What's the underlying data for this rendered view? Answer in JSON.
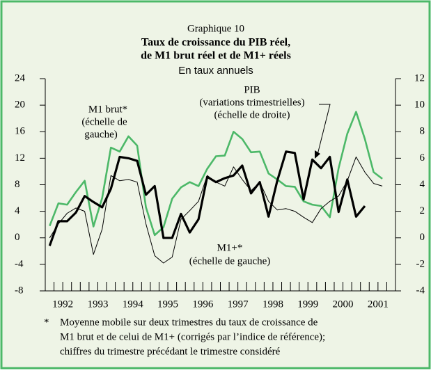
{
  "chart_data": {
    "type": "line",
    "title": "Graphique 10",
    "subtitle": [
      "Taux de croissance du PIB réel,",
      "de M1 brut réel et de M1+ réels"
    ],
    "unit_label": "En taux annuels",
    "annotations": {
      "m1brut": [
        "M1 brut*",
        "(échelle de",
        "gauche)"
      ],
      "pib": [
        "PIB",
        "(variations trimestrielles)",
        "(échelle de droite)"
      ],
      "m1plus": [
        "M1+*",
        "(échelle de gauche)"
      ]
    },
    "footnote": {
      "marker": "*",
      "lines": [
        "Moyenne mobile sur deux trimestres du taux de croissance de",
        "M1 brut et de celui de M1+ (corrigés par l’indice de référence);",
        "chiffres du trimestre précédant le trimestre considéré"
      ]
    },
    "x": [
      1992.125,
      1992.375,
      1992.625,
      1992.875,
      1993.125,
      1993.375,
      1993.625,
      1993.875,
      1994.125,
      1994.375,
      1994.625,
      1994.875,
      1995.125,
      1995.375,
      1995.625,
      1995.875,
      1996.125,
      1996.375,
      1996.625,
      1996.875,
      1997.125,
      1997.375,
      1997.625,
      1997.875,
      1998.125,
      1998.375,
      1998.625,
      1998.875,
      1999.125,
      1999.375,
      1999.625,
      1999.875,
      2000.125,
      2000.375,
      2000.625,
      2000.875,
      2001.125,
      2001.375,
      2001.625
    ],
    "xlim": [
      1992,
      2002
    ],
    "xticks": [
      {
        "value": 1992.5,
        "label": "1992"
      },
      {
        "value": 1993.5,
        "label": "1993"
      },
      {
        "value": 1994.5,
        "label": "1994"
      },
      {
        "value": 1995.5,
        "label": "1995"
      },
      {
        "value": 1996.5,
        "label": "1996"
      },
      {
        "value": 1997.5,
        "label": "1997"
      },
      {
        "value": 1998.5,
        "label": "1998"
      },
      {
        "value": 1999.5,
        "label": "1999"
      },
      {
        "value": 2000.5,
        "label": "2000"
      },
      {
        "value": 2001.5,
        "label": "2001"
      }
    ],
    "ylim": [
      -8,
      24
    ],
    "yticks": [
      -8,
      -4,
      0,
      4,
      8,
      12,
      16,
      20,
      24
    ],
    "y2lim": [
      -4,
      12
    ],
    "y2ticks": [
      -4,
      -2,
      0,
      2,
      4,
      6,
      8,
      10,
      12
    ],
    "series": [
      {
        "name": "M1 brut",
        "color": "#4cb868",
        "values": [
          1.8,
          5.2,
          5.0,
          6.9,
          8.6,
          1.7,
          6.0,
          13.6,
          13.0,
          15.3,
          13.9,
          4.6,
          0.4,
          1.6,
          5.9,
          7.6,
          8.4,
          7.8,
          10.4,
          12.3,
          12.4,
          16.0,
          14.9,
          12.9,
          13.0,
          9.7,
          8.8,
          7.8,
          7.7,
          5.5,
          5.0,
          4.8,
          3.1,
          10.5,
          15.7,
          19.0,
          14.9,
          9.9,
          8.9
        ]
      },
      {
        "name": "M1+",
        "color": "#000000",
        "values": [
          0,
          2.1,
          3.7,
          4.5,
          4.0,
          -2.5,
          1.3,
          9.4,
          8.6,
          8.8,
          8.4,
          2.1,
          -2.7,
          -3.8,
          -2.9,
          2.8,
          4.1,
          5.5,
          9.4,
          8.4,
          7.8,
          10.7,
          8.8,
          7.1,
          8.4,
          5.5,
          4.2,
          4.4,
          4.0,
          3.1,
          2.3,
          4.4,
          5.5,
          6.3,
          8.6,
          12.2,
          9.9,
          8.2,
          7.8
        ]
      },
      {
        "name": "PIB",
        "color": "#000000",
        "axis": "y2",
        "values": [
          -0.6,
          1.25,
          1.25,
          1.9,
          3.15,
          2.7,
          2.3,
          3.7,
          6.1,
          6.0,
          5.8,
          3.25,
          3.9,
          0,
          0,
          1.8,
          0.4,
          1.4,
          4.6,
          4.2,
          4.5,
          4.7,
          5.45,
          3.35,
          4.2,
          1.6,
          4.3,
          6.5,
          6.4,
          2.9,
          5.9,
          5.25,
          6.1,
          1.95,
          4.4,
          1.6,
          2.4,
          null,
          null
        ]
      }
    ]
  }
}
